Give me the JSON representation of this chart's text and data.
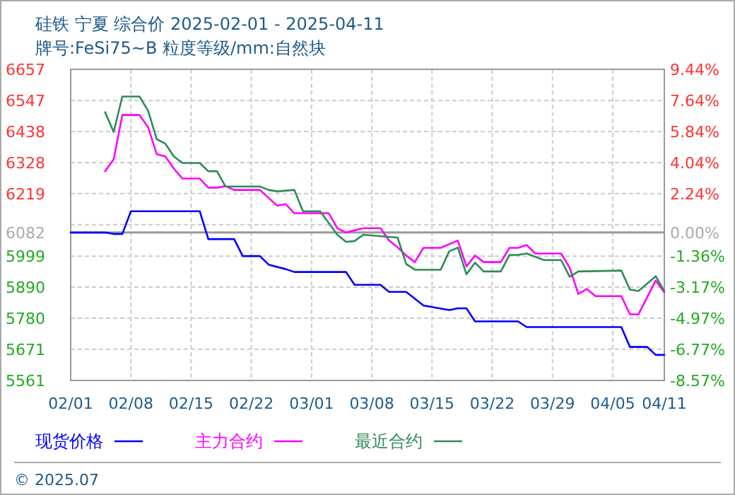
{
  "chart_data": {
    "type": "line",
    "title": "硅铁 宁夏 综合价 2025-02-01 - 2025-04-11",
    "subtitle": "牌号:FeSi75~B 粒度等级/mm:自然块",
    "annotations": [
      "© 2025.07"
    ],
    "xlim": [
      "2025-02-01",
      "2025-04-11"
    ],
    "xticks": [
      {
        "value": "2025-02-01",
        "label": "02/01"
      },
      {
        "value": "2025-02-08",
        "label": "02/08"
      },
      {
        "value": "2025-02-15",
        "label": "02/15"
      },
      {
        "value": "2025-02-22",
        "label": "02/22"
      },
      {
        "value": "2025-03-01",
        "label": "03/01"
      },
      {
        "value": "2025-03-08",
        "label": "03/08"
      },
      {
        "value": "2025-03-15",
        "label": "03/15"
      },
      {
        "value": "2025-03-22",
        "label": "03/22"
      },
      {
        "value": "2025-03-29",
        "label": "03/29"
      },
      {
        "value": "2025-04-05",
        "label": "04/05"
      },
      {
        "value": "2025-04-11",
        "label": "04/11"
      }
    ],
    "ylim": [
      5561,
      6657
    ],
    "yticks": [
      6657,
      6547,
      6438,
      6328,
      6219,
      {
        "value": 6109.6,
        "label": null
      },
      6082,
      5999,
      5890,
      5780,
      5671,
      5561
    ],
    "y2lim": [
      -8.57,
      9.44
    ],
    "y2ticks": [
      {
        "value": 9.44,
        "label": "9.44%"
      },
      {
        "value": 7.64,
        "label": "7.64%"
      },
      {
        "value": 5.84,
        "label": "5.84%"
      },
      {
        "value": 4.04,
        "label": "4.04%"
      },
      {
        "value": 2.24,
        "label": "2.24%"
      },
      {
        "value": 0,
        "label": "0.00%"
      },
      {
        "value": -1.36,
        "label": "-1.36%"
      },
      {
        "value": -3.17,
        "label": "-3.17%"
      },
      {
        "value": -4.97,
        "label": "-4.97%"
      },
      {
        "value": -6.77,
        "label": "-6.77%"
      },
      {
        "value": -8.57,
        "label": "-8.57%"
      }
    ],
    "ref_lines": [
      {
        "axis": "y",
        "value": 6082,
        "color": "#999999"
      }
    ],
    "grid": true,
    "legend": "bottom",
    "line_style": "solid",
    "series": [
      {
        "name": "现货价格",
        "color": "#0000ff",
        "x": [
          "2025-02-01",
          "2025-02-05",
          "2025-02-06",
          "2025-02-07",
          "2025-02-08",
          "2025-02-16",
          "2025-02-17",
          "2025-02-20",
          "2025-02-21",
          "2025-02-23",
          "2025-02-24",
          "2025-02-26",
          "2025-02-27",
          "2025-03-05",
          "2025-03-06",
          "2025-03-09",
          "2025-03-10",
          "2025-03-12",
          "2025-03-14",
          "2025-03-17",
          "2025-03-18",
          "2025-03-19",
          "2025-03-20",
          "2025-03-25",
          "2025-03-26",
          "2025-04-06",
          "2025-04-07",
          "2025-04-09",
          "2025-04-10",
          "2025-04-11"
        ],
        "values": [
          6082,
          6082,
          6077,
          6077,
          6157,
          6157,
          6059,
          6059,
          5999,
          5999,
          5969,
          5953,
          5943,
          5943,
          5898,
          5898,
          5873,
          5873,
          5825,
          5809,
          5815,
          5815,
          5769,
          5769,
          5749,
          5749,
          5679,
          5679,
          5651,
          5651
        ]
      },
      {
        "name": "主力合约",
        "color": "#ff00ff",
        "x": [
          "2025-02-05",
          "2025-02-06",
          "2025-02-07",
          "2025-02-09",
          "2025-02-10",
          "2025-02-11",
          "2025-02-12",
          "2025-02-13",
          "2025-02-14",
          "2025-02-16",
          "2025-02-17",
          "2025-02-18",
          "2025-02-19",
          "2025-02-20",
          "2025-02-23",
          "2025-02-24",
          "2025-02-25",
          "2025-02-26",
          "2025-02-27",
          "2025-03-03",
          "2025-03-04",
          "2025-03-05",
          "2025-03-06",
          "2025-03-07",
          "2025-03-09",
          "2025-03-10",
          "2025-03-11",
          "2025-03-12",
          "2025-03-13",
          "2025-03-14",
          "2025-03-16",
          "2025-03-18",
          "2025-03-19",
          "2025-03-20",
          "2025-03-21",
          "2025-03-23",
          "2025-03-24",
          "2025-03-25",
          "2025-03-26",
          "2025-03-27",
          "2025-03-30",
          "2025-03-31",
          "2025-04-01",
          "2025-04-02",
          "2025-04-03",
          "2025-04-06",
          "2025-04-07",
          "2025-04-08",
          "2025-04-10",
          "2025-04-11"
        ],
        "values": [
          6298,
          6340,
          6496,
          6496,
          6453,
          6358,
          6350,
          6307,
          6272,
          6272,
          6240,
          6240,
          6245,
          6232,
          6232,
          6204,
          6177,
          6182,
          6150,
          6150,
          6097,
          6082,
          6090,
          6097,
          6097,
          6054,
          6030,
          6001,
          5978,
          6028,
          6028,
          6054,
          5963,
          6001,
          5978,
          5978,
          6028,
          6028,
          6038,
          6008,
          6008,
          5958,
          5866,
          5883,
          5858,
          5858,
          5794,
          5794,
          5913,
          5871
        ]
      },
      {
        "name": "最近合约",
        "color": "#2e8b57",
        "x": [
          "2025-02-05",
          "2025-02-06",
          "2025-02-07",
          "2025-02-09",
          "2025-02-10",
          "2025-02-11",
          "2025-02-12",
          "2025-02-13",
          "2025-02-14",
          "2025-02-16",
          "2025-02-17",
          "2025-02-18",
          "2025-02-19",
          "2025-02-23",
          "2025-02-24",
          "2025-02-25",
          "2025-02-27",
          "2025-02-28",
          "2025-03-02",
          "2025-03-04",
          "2025-03-05",
          "2025-03-06",
          "2025-03-07",
          "2025-03-11",
          "2025-03-12",
          "2025-03-13",
          "2025-03-16",
          "2025-03-17",
          "2025-03-18",
          "2025-03-19",
          "2025-03-20",
          "2025-03-21",
          "2025-03-23",
          "2025-03-24",
          "2025-03-25",
          "2025-03-26",
          "2025-03-28",
          "2025-03-30",
          "2025-03-31",
          "2025-04-01",
          "2025-04-06",
          "2025-04-07",
          "2025-04-08",
          "2025-04-10",
          "2025-04-11"
        ],
        "values": [
          6506,
          6436,
          6561,
          6561,
          6511,
          6411,
          6395,
          6350,
          6327,
          6327,
          6298,
          6298,
          6244,
          6244,
          6232,
          6227,
          6232,
          6157,
          6157,
          6074,
          6049,
          6052,
          6074,
          6064,
          5971,
          5951,
          5951,
          6016,
          6029,
          5935,
          5976,
          5945,
          5945,
          6003,
          6003,
          6008,
          5985,
          5985,
          5926,
          5945,
          5948,
          5881,
          5876,
          5928,
          5876
        ]
      }
    ]
  }
}
